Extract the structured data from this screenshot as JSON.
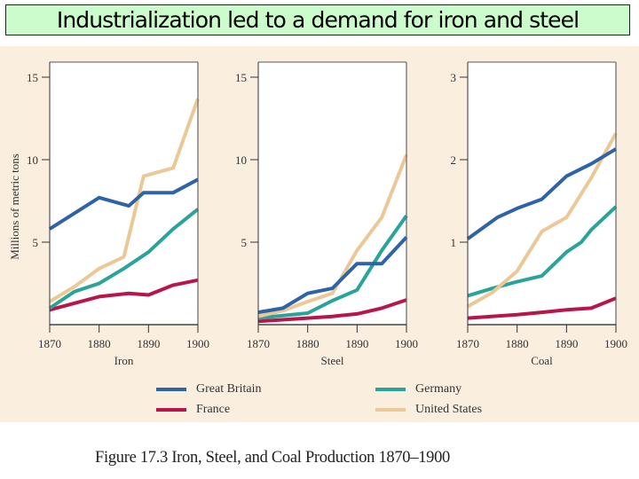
{
  "slide": {
    "title": "Industrialization led to a demand for iron and steel"
  },
  "caption": "Figure 17.3  Iron, Steel, and Coal Production 1870–1900",
  "legend": [
    {
      "name": "Great Britain",
      "color": "#2e63a8"
    },
    {
      "name": "Germany",
      "color": "#2aa39b"
    },
    {
      "name": "France",
      "color": "#b8164a"
    },
    {
      "name": "United States",
      "color": "#ebc896"
    }
  ],
  "chart_data": [
    {
      "type": "line",
      "title": "",
      "xlabel": "Iron",
      "ylabel": "Millions of metric tons",
      "xlim": [
        1870,
        1900
      ],
      "ylim": [
        0,
        16
      ],
      "xticks": [
        1870,
        1880,
        1890,
        1900
      ],
      "yticks": [
        5,
        10,
        15
      ],
      "grid": false,
      "series": [
        {
          "name": "Great Britain",
          "x": [
            1870,
            1880,
            1886,
            1889,
            1895,
            1900
          ],
          "y": [
            5.8,
            7.7,
            7.2,
            8.0,
            8.0,
            8.8
          ]
        },
        {
          "name": "United States",
          "x": [
            1870,
            1875,
            1880,
            1885,
            1889,
            1895,
            1900
          ],
          "y": [
            1.4,
            2.3,
            3.4,
            4.1,
            9.0,
            9.5,
            13.7
          ]
        },
        {
          "name": "Germany",
          "x": [
            1870,
            1875,
            1880,
            1885,
            1890,
            1895,
            1900
          ],
          "y": [
            1.0,
            2.0,
            2.5,
            3.4,
            4.4,
            5.8,
            7.0
          ]
        },
        {
          "name": "France",
          "x": [
            1870,
            1880,
            1886,
            1890,
            1895,
            1900
          ],
          "y": [
            0.9,
            1.7,
            1.9,
            1.8,
            2.4,
            2.7
          ]
        }
      ]
    },
    {
      "type": "line",
      "title": "",
      "xlabel": "Steel",
      "ylabel": "",
      "xlim": [
        1870,
        1900
      ],
      "ylim": [
        0,
        16
      ],
      "xticks": [
        1870,
        1880,
        1890,
        1900
      ],
      "yticks": [
        5,
        10,
        15
      ],
      "grid": false,
      "series": [
        {
          "name": "Great Britain",
          "x": [
            1870,
            1875,
            1880,
            1885,
            1890,
            1895,
            1900
          ],
          "y": [
            0.75,
            1.0,
            1.9,
            2.2,
            3.7,
            3.7,
            5.3
          ]
        },
        {
          "name": "United States",
          "x": [
            1870,
            1875,
            1880,
            1885,
            1890,
            1895,
            1900
          ],
          "y": [
            0.5,
            0.85,
            1.4,
            1.9,
            4.5,
            6.5,
            10.3
          ]
        },
        {
          "name": "Germany",
          "x": [
            1870,
            1875,
            1880,
            1885,
            1890,
            1895,
            1900
          ],
          "y": [
            0.4,
            0.55,
            0.7,
            1.45,
            2.1,
            4.5,
            6.6
          ]
        },
        {
          "name": "France",
          "x": [
            1870,
            1880,
            1885,
            1890,
            1895,
            1900
          ],
          "y": [
            0.2,
            0.4,
            0.5,
            0.65,
            1.0,
            1.5
          ]
        }
      ]
    },
    {
      "type": "line",
      "title": "",
      "xlabel": "Coal",
      "ylabel": "",
      "xlim": [
        1870,
        1900
      ],
      "ylim": [
        0,
        3.2
      ],
      "xticks": [
        1870,
        1880,
        1890,
        1900
      ],
      "yticks": [
        1,
        2,
        3
      ],
      "grid": false,
      "series": [
        {
          "name": "Great Britain",
          "x": [
            1870,
            1876,
            1880,
            1885,
            1890,
            1895,
            1900
          ],
          "y": [
            1.04,
            1.3,
            1.41,
            1.52,
            1.8,
            1.95,
            2.13
          ]
        },
        {
          "name": "United States",
          "x": [
            1870,
            1875,
            1880,
            1885,
            1890,
            1895,
            1900
          ],
          "y": [
            0.22,
            0.39,
            0.65,
            1.13,
            1.3,
            1.78,
            2.32
          ]
        },
        {
          "name": "Germany",
          "x": [
            1870,
            1875,
            1880,
            1885,
            1890,
            1893,
            1895,
            1900
          ],
          "y": [
            0.35,
            0.44,
            0.52,
            0.59,
            0.88,
            1.0,
            1.15,
            1.43
          ]
        },
        {
          "name": "France",
          "x": [
            1870,
            1880,
            1885,
            1890,
            1895,
            1900
          ],
          "y": [
            0.08,
            0.12,
            0.15,
            0.18,
            0.2,
            0.32
          ]
        }
      ]
    }
  ]
}
